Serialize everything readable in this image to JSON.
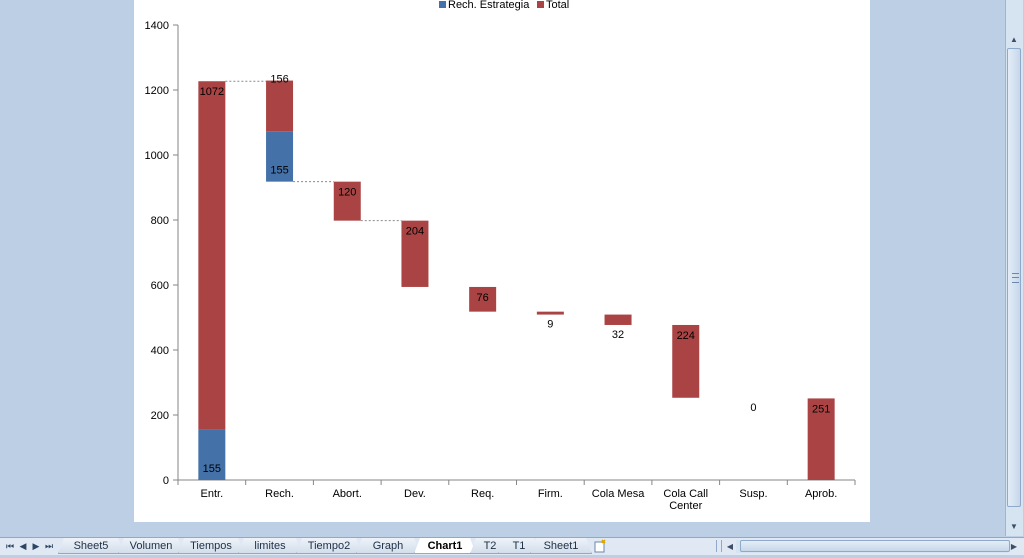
{
  "chart_data": {
    "type": "bar",
    "stacked": true,
    "style": "waterfall",
    "categories": [
      "Entr.",
      "Rech.",
      "Abort.",
      "Dev.",
      "Req.",
      "Firm.",
      "Cola Mesa",
      "Cola Call Center",
      "Susp.",
      "Aprob."
    ],
    "category_lines": [
      [
        "Entr."
      ],
      [
        "Rech."
      ],
      [
        "Abort."
      ],
      [
        "Dev."
      ],
      [
        "Req."
      ],
      [
        "Firm."
      ],
      [
        "Cola Mesa"
      ],
      [
        "Cola Call",
        "Center"
      ],
      [
        "Susp."
      ],
      [
        "Aprob."
      ]
    ],
    "bases": [
      0,
      918,
      798,
      594,
      518,
      509,
      477,
      253,
      253,
      0
    ],
    "series": [
      {
        "name": "Rech. Estrategia",
        "color": "#4472a8",
        "values": [
          155,
          155,
          0,
          0,
          0,
          0,
          0,
          0,
          0,
          0
        ]
      },
      {
        "name": "Total",
        "color": "#aa4444",
        "values": [
          1072,
          156,
          120,
          204,
          76,
          9,
          32,
          224,
          0,
          251
        ]
      }
    ],
    "data_labels": [
      {
        "category": 0,
        "series": 1,
        "text": "1072"
      },
      {
        "category": 0,
        "series": 0,
        "text": "155"
      },
      {
        "category": 1,
        "series": 1,
        "text": "156"
      },
      {
        "category": 1,
        "series": 0,
        "text": "155"
      },
      {
        "category": 2,
        "series": 1,
        "text": "120"
      },
      {
        "category": 3,
        "series": 1,
        "text": "204"
      },
      {
        "category": 4,
        "series": 1,
        "text": "76"
      },
      {
        "category": 5,
        "series": 1,
        "text": "9"
      },
      {
        "category": 6,
        "series": 1,
        "text": "32"
      },
      {
        "category": 7,
        "series": 1,
        "text": "224"
      },
      {
        "category": 8,
        "series": 1,
        "text": "0"
      },
      {
        "category": 9,
        "series": 1,
        "text": "251"
      }
    ],
    "ylim": [
      0,
      1400
    ],
    "yticks": [
      0,
      200,
      400,
      600,
      800,
      1000,
      1200,
      1400
    ],
    "legend_position": "top",
    "connector_lines": true,
    "grid": false
  },
  "sheet_tabs": [
    {
      "label": "Sheet5",
      "active": false
    },
    {
      "label": "Volumen",
      "active": false
    },
    {
      "label": "Tiempos",
      "active": false
    },
    {
      "label": "limites",
      "active": false
    },
    {
      "label": "Tiempo2",
      "active": false
    },
    {
      "label": "Graph",
      "active": false
    },
    {
      "label": "Chart1",
      "active": true
    },
    {
      "label": "T2",
      "active": false
    },
    {
      "label": "T1",
      "active": false
    },
    {
      "label": "Sheet1",
      "active": false
    }
  ],
  "tab_nav": {
    "first": "⏮",
    "prev": "◀",
    "next": "▶",
    "last": "⏭"
  },
  "icons": {
    "insert_sheet": "new-sheet-icon"
  },
  "colors": {
    "workspace_bg": "#bccfe4",
    "blue_series": "#4472a8",
    "red_series": "#aa4444"
  }
}
